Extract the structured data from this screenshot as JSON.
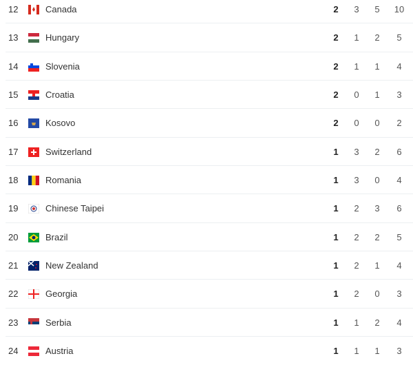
{
  "rows": [
    {
      "rank": "12",
      "country": "Canada",
      "flag": "canada",
      "gold": "2",
      "silver": "3",
      "bronze": "5",
      "total": "10"
    },
    {
      "rank": "13",
      "country": "Hungary",
      "flag": "hungary",
      "gold": "2",
      "silver": "1",
      "bronze": "2",
      "total": "5"
    },
    {
      "rank": "14",
      "country": "Slovenia",
      "flag": "slovenia",
      "gold": "2",
      "silver": "1",
      "bronze": "1",
      "total": "4"
    },
    {
      "rank": "15",
      "country": "Croatia",
      "flag": "croatia",
      "gold": "2",
      "silver": "0",
      "bronze": "1",
      "total": "3"
    },
    {
      "rank": "16",
      "country": "Kosovo",
      "flag": "kosovo",
      "gold": "2",
      "silver": "0",
      "bronze": "0",
      "total": "2"
    },
    {
      "rank": "17",
      "country": "Switzerland",
      "flag": "switzerland",
      "gold": "1",
      "silver": "3",
      "bronze": "2",
      "total": "6"
    },
    {
      "rank": "18",
      "country": "Romania",
      "flag": "romania",
      "gold": "1",
      "silver": "3",
      "bronze": "0",
      "total": "4"
    },
    {
      "rank": "19",
      "country": "Chinese Taipei",
      "flag": "chinese-taipei",
      "gold": "1",
      "silver": "2",
      "bronze": "3",
      "total": "6"
    },
    {
      "rank": "20",
      "country": "Brazil",
      "flag": "brazil",
      "gold": "1",
      "silver": "2",
      "bronze": "2",
      "total": "5"
    },
    {
      "rank": "21",
      "country": "New Zealand",
      "flag": "new-zealand",
      "gold": "1",
      "silver": "2",
      "bronze": "1",
      "total": "4"
    },
    {
      "rank": "22",
      "country": "Georgia",
      "flag": "georgia",
      "gold": "1",
      "silver": "2",
      "bronze": "0",
      "total": "3"
    },
    {
      "rank": "23",
      "country": "Serbia",
      "flag": "serbia",
      "gold": "1",
      "silver": "1",
      "bronze": "2",
      "total": "4"
    },
    {
      "rank": "24",
      "country": "Austria",
      "flag": "austria",
      "gold": "1",
      "silver": "1",
      "bronze": "1",
      "total": "3"
    }
  ]
}
